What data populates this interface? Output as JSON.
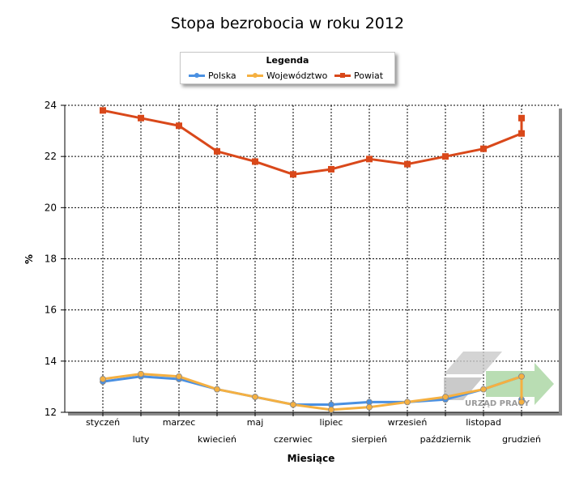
{
  "chart_data": {
    "type": "line",
    "title": "Stopa bezrobocia w roku 2012",
    "xlabel": "Miesiące",
    "ylabel": "%",
    "ylim": [
      12,
      24
    ],
    "yticks": [
      12,
      14,
      16,
      18,
      20,
      22,
      24
    ],
    "categories": [
      "styczeń",
      "luty",
      "marzec",
      "kwiecień",
      "maj",
      "czerwiec",
      "lipiec",
      "sierpień",
      "wrzesień",
      "październik",
      "listopad",
      "grudzień"
    ],
    "grid": true,
    "legend": {
      "title": "Legenda",
      "placement": "top-center"
    },
    "series": [
      {
        "name": "Polska",
        "color": "#4a90e2",
        "marker": "circle",
        "values": [
          13.2,
          13.4,
          13.3,
          12.9,
          12.6,
          12.3,
          12.3,
          12.4,
          12.4,
          12.5,
          12.9,
          13.4
        ],
        "end_extra": 12.5
      },
      {
        "name": "Województwo",
        "color": "#f5b041",
        "marker": "circle",
        "values": [
          13.3,
          13.5,
          13.4,
          12.9,
          12.6,
          12.3,
          12.1,
          12.2,
          12.4,
          12.6,
          12.9,
          13.4
        ],
        "end_extra": 12.4
      },
      {
        "name": "Powiat",
        "color": "#d9481a",
        "marker": "square",
        "values": [
          23.8,
          23.5,
          23.2,
          22.2,
          21.8,
          21.3,
          21.5,
          21.9,
          21.7,
          22.0,
          22.3,
          22.9
        ],
        "end_extra": 23.5
      }
    ]
  },
  "watermark": "URZĄD PRACY"
}
